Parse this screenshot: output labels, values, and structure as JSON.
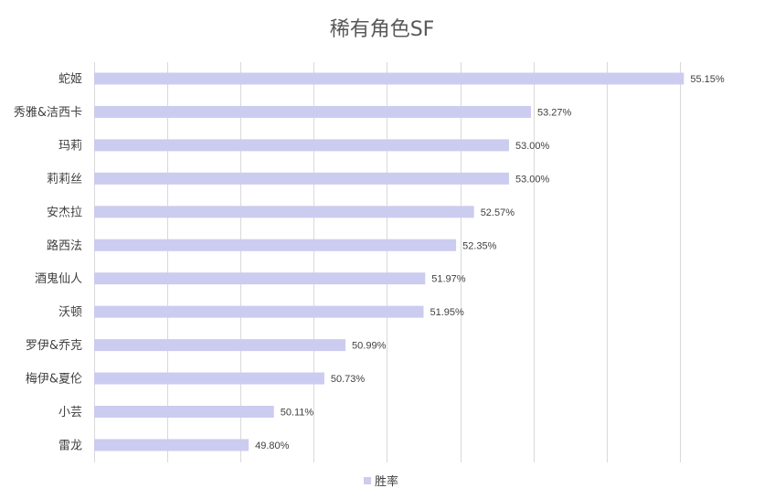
{
  "chart_data": {
    "type": "bar",
    "orientation": "horizontal",
    "title": "稀有角色SF",
    "categories": [
      "蛇姬",
      "秀雅&洁西卡",
      "玛莉",
      "莉莉丝",
      "安杰拉",
      "路西法",
      "酒鬼仙人",
      "沃顿",
      "罗伊&乔克",
      "梅伊&夏伦",
      "小芸",
      "雷龙"
    ],
    "series": [
      {
        "name": "胜率",
        "values": [
          55.15,
          53.27,
          53.0,
          53.0,
          52.57,
          52.35,
          51.97,
          51.95,
          50.99,
          50.73,
          50.11,
          49.8
        ],
        "labels": [
          "55.15%",
          "53.27%",
          "53.00%",
          "53.00%",
          "52.57%",
          "52.35%",
          "51.97%",
          "51.95%",
          "50.99%",
          "50.73%",
          "50.11%",
          "49.80%"
        ],
        "color": "#ccccf0"
      }
    ],
    "xlim": [
      47.9,
      56.0
    ],
    "grid": true,
    "legend_position": "bottom",
    "gridline_color": "#d9d9d9"
  }
}
